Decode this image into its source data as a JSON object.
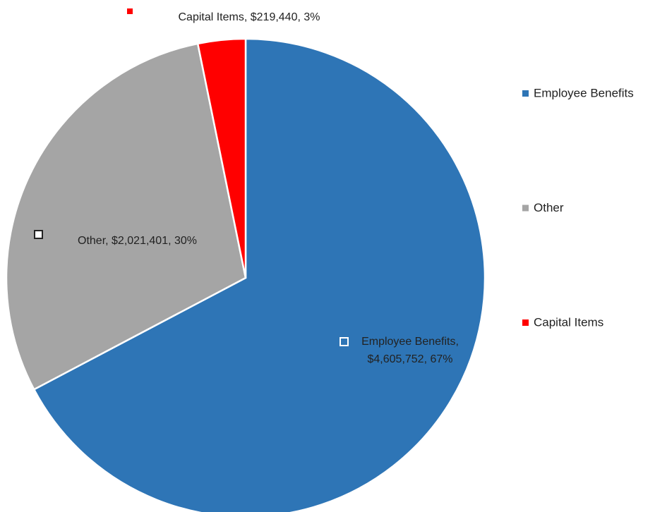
{
  "chart_data": {
    "type": "pie",
    "categories": [
      "Employee Benefits",
      "Other",
      "Capital Items"
    ],
    "values": [
      4605752,
      2021401,
      219440
    ],
    "value_labels": [
      [
        "Employee Benefits,",
        "$4,605,752, 67%"
      ],
      [
        "Other, $2,021,401, 30%"
      ],
      [
        "Capital Items, $219,440, 3%"
      ]
    ],
    "colors": [
      "#2e75b6",
      "#a5a5a5",
      "#ff0000"
    ],
    "legend": "right"
  }
}
